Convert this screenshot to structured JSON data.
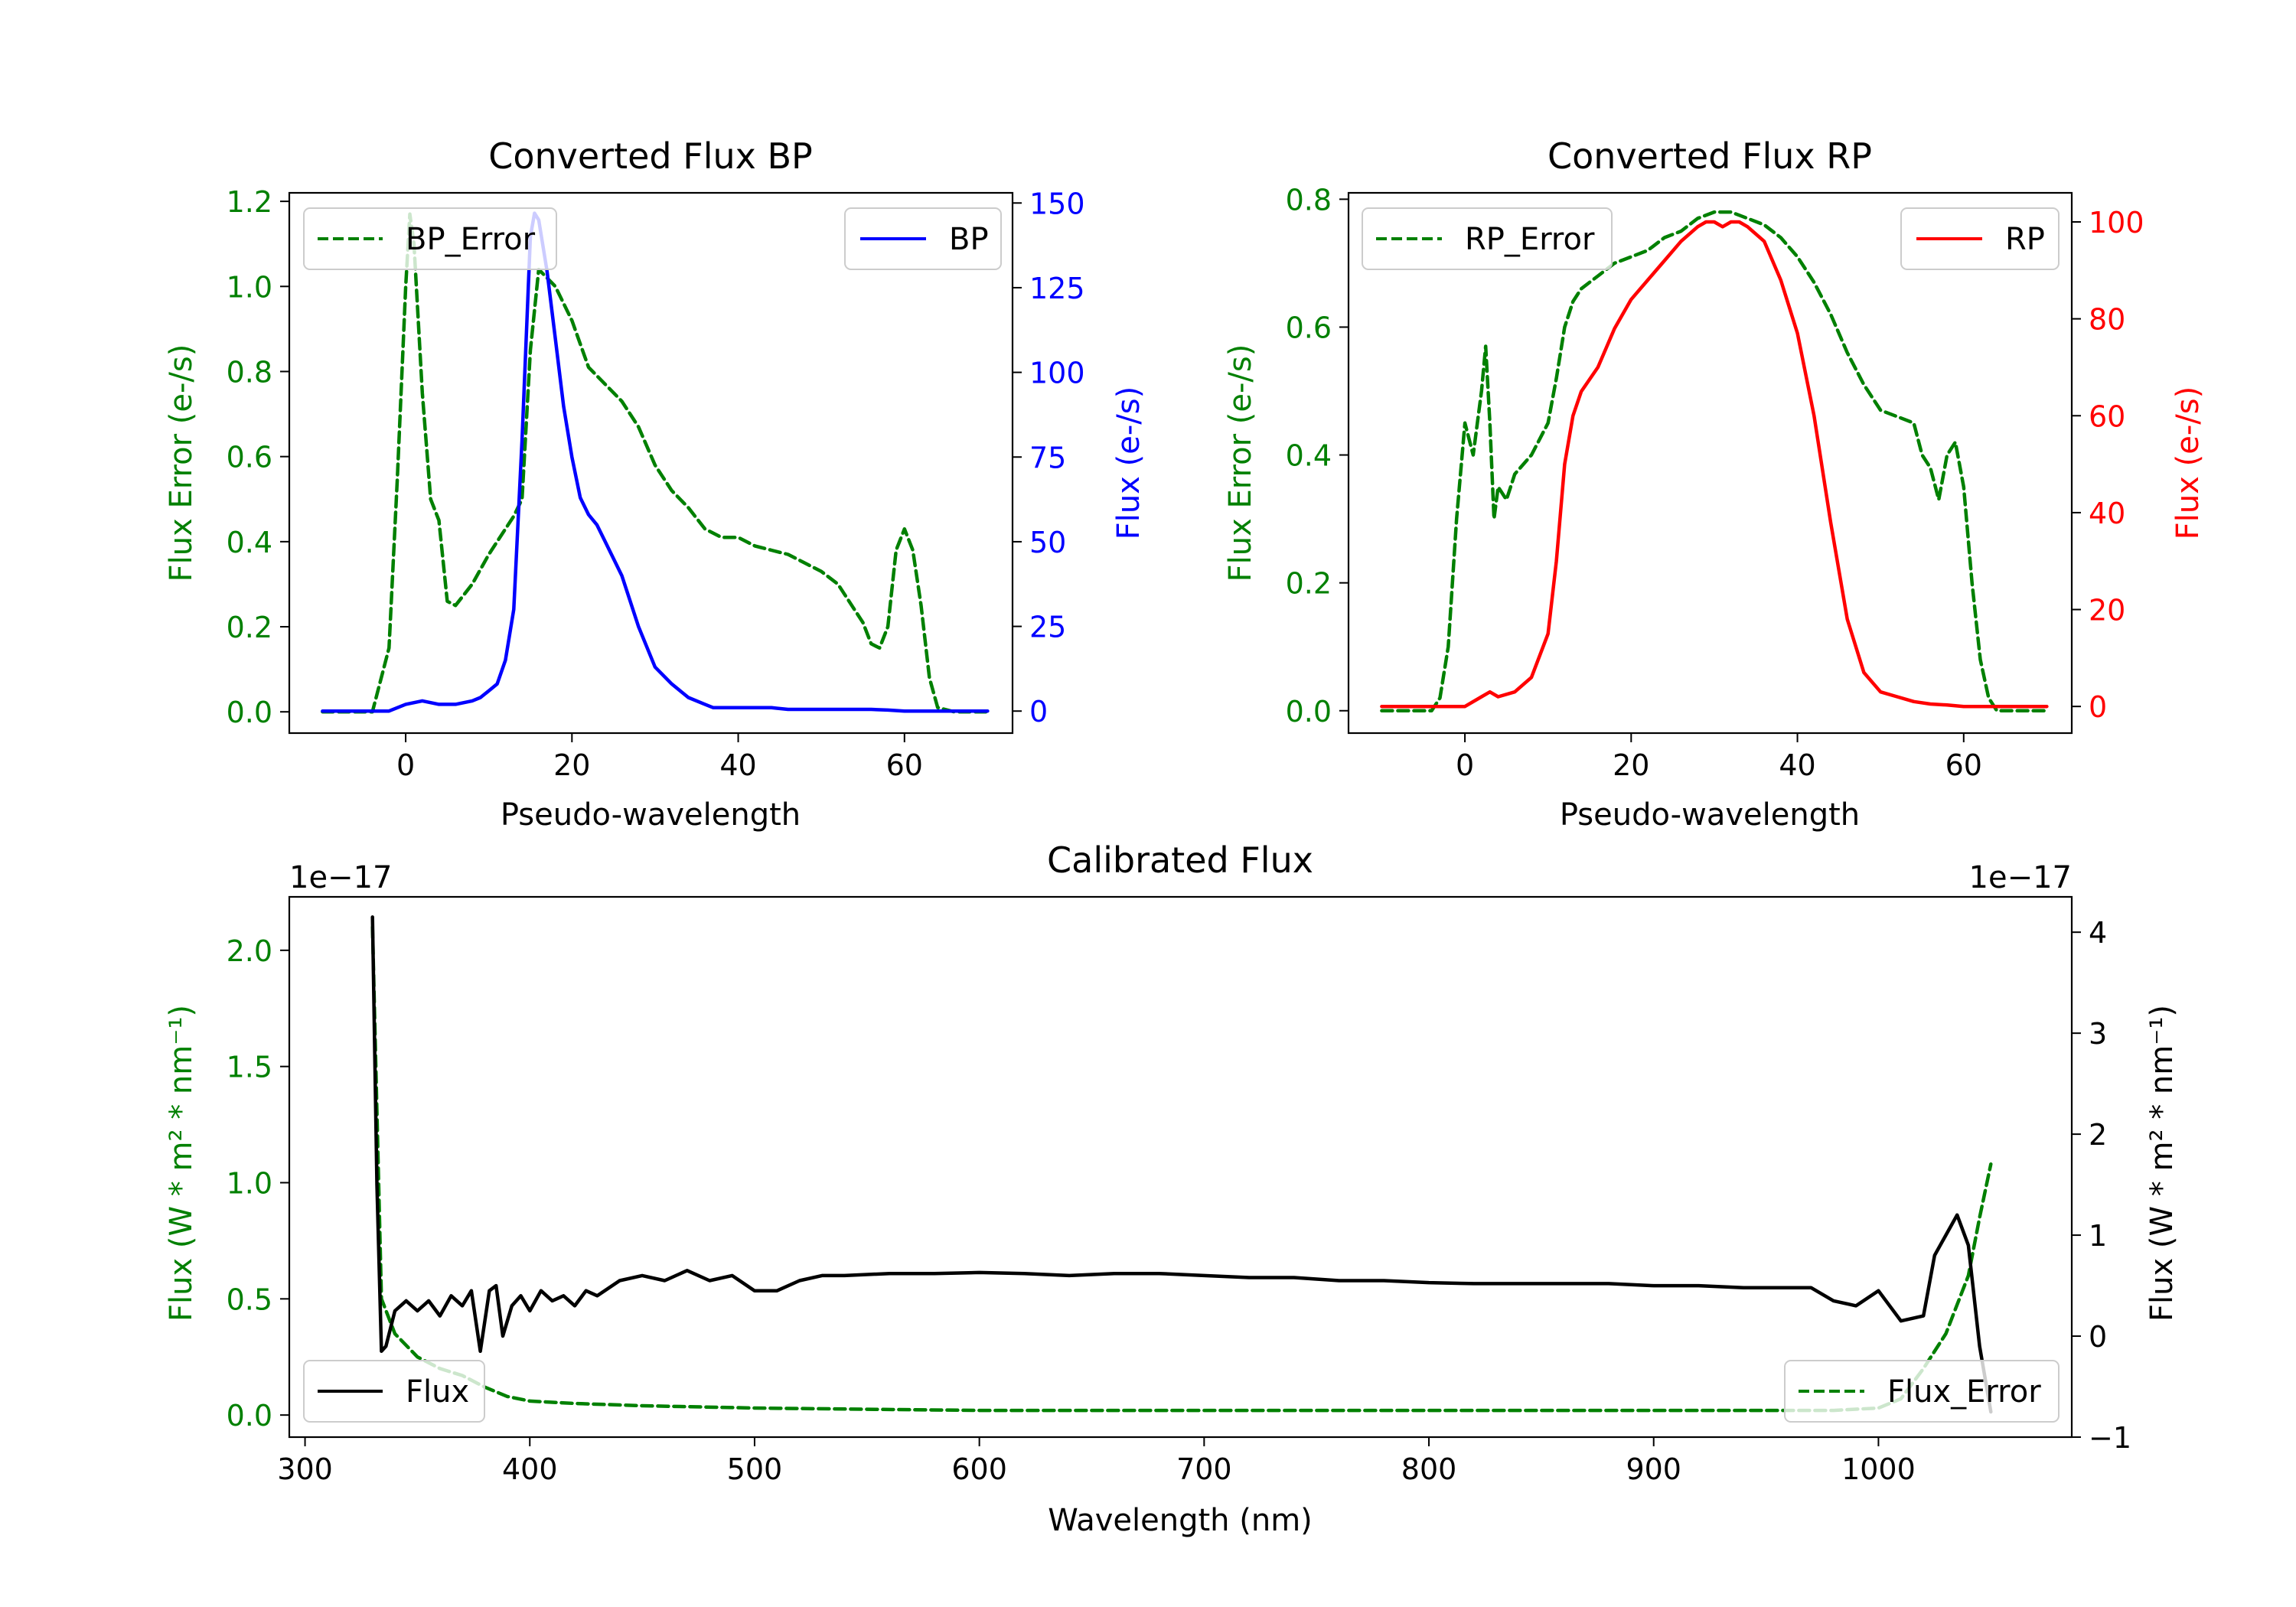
{
  "figure_title": "",
  "chart_data": [
    {
      "id": "bp",
      "type": "line",
      "title": "Converted Flux BP",
      "xlabel": "Pseudo-wavelength",
      "xlim": [
        -14,
        73
      ],
      "xticks": [
        0,
        20,
        40,
        60
      ],
      "y_left": {
        "label": "Flux Error (e-/s)",
        "lim": [
          -0.05,
          1.22
        ],
        "ticks": [
          0.0,
          0.2,
          0.4,
          0.6,
          0.8,
          1.0,
          1.2
        ],
        "color": "#008000"
      },
      "y_right": {
        "label": "Flux (e-/s)",
        "lim": [
          -6.5,
          153
        ],
        "ticks": [
          0,
          25,
          50,
          75,
          100,
          125,
          150
        ],
        "color": "#0000ff"
      },
      "legend_left": {
        "label": "BP_Error",
        "position": "upper left"
      },
      "legend_right": {
        "label": "BP",
        "position": "upper right"
      },
      "series": [
        {
          "name": "BP_Error",
          "axis": "left",
          "color": "#008000",
          "style": "dashed",
          "x": [
            -10,
            -4,
            -2,
            -1,
            0,
            0.5,
            1,
            2,
            3,
            4,
            5,
            6,
            8,
            10,
            12,
            13,
            14,
            15,
            16,
            18,
            20,
            22,
            24,
            26,
            28,
            30,
            32,
            34,
            36,
            38,
            40,
            42,
            44,
            46,
            48,
            50,
            52,
            54,
            55,
            56,
            57,
            58,
            59,
            60,
            61,
            62,
            63,
            64,
            66,
            70
          ],
          "values": [
            0.0,
            0.0,
            0.15,
            0.55,
            1.0,
            1.17,
            1.1,
            0.75,
            0.5,
            0.45,
            0.26,
            0.25,
            0.3,
            0.37,
            0.43,
            0.46,
            0.5,
            0.85,
            1.04,
            1.0,
            0.92,
            0.81,
            0.77,
            0.73,
            0.67,
            0.58,
            0.52,
            0.48,
            0.43,
            0.41,
            0.41,
            0.39,
            0.38,
            0.37,
            0.35,
            0.33,
            0.3,
            0.24,
            0.21,
            0.16,
            0.15,
            0.2,
            0.38,
            0.43,
            0.38,
            0.25,
            0.08,
            0.01,
            0.0,
            0.0
          ]
        },
        {
          "name": "BP",
          "axis": "right",
          "color": "#0000ff",
          "style": "solid",
          "x": [
            -10,
            -4,
            -2,
            0,
            2,
            4,
            6,
            8,
            9,
            10,
            11,
            12,
            13,
            14,
            15,
            15.5,
            16,
            17,
            18,
            19,
            20,
            21,
            22,
            23,
            24,
            26,
            28,
            30,
            32,
            34,
            36,
            37,
            38,
            40,
            42,
            44,
            46,
            48,
            50,
            52,
            54,
            56,
            58,
            60,
            65,
            70
          ],
          "values": [
            0,
            0,
            0,
            2,
            3,
            2,
            2,
            3,
            4,
            6,
            8,
            15,
            30,
            80,
            140,
            147,
            145,
            130,
            110,
            90,
            75,
            63,
            58,
            55,
            50,
            40,
            25,
            13,
            8,
            4,
            2,
            1,
            1,
            1,
            1,
            1,
            0.5,
            0.5,
            0.5,
            0.5,
            0.5,
            0.5,
            0.3,
            0,
            0,
            0
          ]
        }
      ]
    },
    {
      "id": "rp",
      "type": "line",
      "title": "Converted Flux RP",
      "xlabel": "Pseudo-wavelength",
      "xlim": [
        -14,
        73
      ],
      "xticks": [
        0,
        20,
        40,
        60
      ],
      "y_left": {
        "label": "Flux Error (e-/s)",
        "lim": [
          -0.035,
          0.81
        ],
        "ticks": [
          0.0,
          0.2,
          0.4,
          0.6,
          0.8
        ],
        "color": "#008000"
      },
      "y_right": {
        "label": "Flux (e-/s)",
        "lim": [
          -5.5,
          106
        ],
        "ticks": [
          0,
          20,
          40,
          60,
          80,
          100
        ],
        "color": "#ff0000"
      },
      "legend_left": {
        "label": "RP_Error",
        "position": "upper left"
      },
      "legend_right": {
        "label": "RP",
        "position": "upper right"
      },
      "series": [
        {
          "name": "RP_Error",
          "axis": "left",
          "color": "#008000",
          "style": "dashed",
          "x": [
            -10,
            -4,
            -3,
            -2,
            -1,
            0,
            1,
            2,
            2.5,
            3,
            3.5,
            4,
            5,
            6,
            8,
            10,
            11,
            12,
            13,
            14,
            16,
            18,
            20,
            22,
            24,
            26,
            28,
            30,
            32,
            34,
            36,
            38,
            40,
            42,
            44,
            46,
            48,
            50,
            52,
            54,
            55,
            56,
            57,
            58,
            59,
            60,
            61,
            62,
            63,
            64,
            66,
            70
          ],
          "values": [
            0.0,
            0.0,
            0.02,
            0.1,
            0.3,
            0.45,
            0.4,
            0.5,
            0.57,
            0.45,
            0.3,
            0.35,
            0.33,
            0.37,
            0.4,
            0.45,
            0.52,
            0.6,
            0.64,
            0.66,
            0.68,
            0.7,
            0.71,
            0.72,
            0.74,
            0.75,
            0.77,
            0.78,
            0.78,
            0.77,
            0.76,
            0.74,
            0.71,
            0.67,
            0.62,
            0.56,
            0.51,
            0.47,
            0.46,
            0.45,
            0.4,
            0.38,
            0.33,
            0.4,
            0.42,
            0.35,
            0.2,
            0.08,
            0.02,
            0.0,
            0.0,
            0.0
          ]
        },
        {
          "name": "RP",
          "axis": "right",
          "color": "#ff0000",
          "style": "solid",
          "x": [
            -10,
            -4,
            0,
            2,
            3,
            4,
            6,
            8,
            10,
            11,
            12,
            13,
            14,
            16,
            18,
            20,
            22,
            24,
            26,
            28,
            29,
            30,
            31,
            32,
            33,
            34,
            36,
            38,
            40,
            42,
            44,
            46,
            48,
            50,
            52,
            54,
            56,
            58,
            60,
            65,
            70
          ],
          "values": [
            0,
            0,
            0,
            2,
            3,
            2,
            3,
            6,
            15,
            30,
            50,
            60,
            65,
            70,
            78,
            84,
            88,
            92,
            96,
            99,
            100,
            100,
            99,
            100,
            100,
            99,
            96,
            88,
            77,
            60,
            38,
            18,
            7,
            3,
            2,
            1,
            0.5,
            0.3,
            0,
            0,
            0
          ]
        }
      ]
    },
    {
      "id": "cal",
      "type": "line",
      "title": "Calibrated Flux",
      "xlabel": "Wavelength (nm)",
      "xlim": [
        293,
        1086
      ],
      "xticks": [
        300,
        400,
        500,
        600,
        700,
        800,
        900,
        1000
      ],
      "y_left": {
        "label": "Flux (W * m² * nm⁻¹)",
        "lim": [
          -0.095,
          2.23
        ],
        "ticks": [
          0.0,
          0.5,
          1.0,
          1.5,
          2.0
        ],
        "tick_labels": [
          "0.0",
          "0.5",
          "1.0",
          "1.5",
          "2.0"
        ],
        "offset_text": "1e−17",
        "color": "#008000"
      },
      "y_right": {
        "label": "Flux (W * m² * nm⁻¹)",
        "lim": [
          -1.0,
          4.35
        ],
        "ticks": [
          -1,
          0,
          1,
          2,
          3,
          4
        ],
        "tick_labels": [
          "−1",
          "0",
          "1",
          "2",
          "3",
          "4"
        ],
        "offset_text": "1e−17",
        "color": "#000000"
      },
      "legend_left": {
        "label": "Flux",
        "position": "lower left"
      },
      "legend_right": {
        "label": "Flux_Error",
        "position": "lower right"
      },
      "series": [
        {
          "name": "Flux_Error",
          "axis": "left",
          "color": "#008000",
          "style": "dashed",
          "x": [
            330,
            334,
            340,
            350,
            360,
            370,
            380,
            390,
            400,
            420,
            450,
            500,
            550,
            600,
            650,
            700,
            750,
            800,
            850,
            900,
            950,
            980,
            1000,
            1010,
            1020,
            1030,
            1040,
            1045,
            1050
          ],
          "values": [
            2.1,
            0.5,
            0.35,
            0.25,
            0.2,
            0.17,
            0.12,
            0.08,
            0.06,
            0.05,
            0.04,
            0.03,
            0.025,
            0.02,
            0.02,
            0.02,
            0.02,
            0.02,
            0.02,
            0.02,
            0.02,
            0.02,
            0.03,
            0.07,
            0.2,
            0.35,
            0.6,
            0.85,
            1.08
          ]
        },
        {
          "name": "Flux",
          "axis": "right",
          "color": "#000000",
          "style": "solid",
          "x": [
            330,
            332,
            334,
            336,
            340,
            345,
            350,
            355,
            360,
            365,
            370,
            374,
            378,
            382,
            385,
            388,
            392,
            396,
            400,
            405,
            410,
            415,
            420,
            425,
            430,
            440,
            450,
            460,
            470,
            480,
            490,
            500,
            510,
            520,
            530,
            540,
            560,
            580,
            600,
            620,
            640,
            660,
            680,
            700,
            720,
            740,
            760,
            780,
            800,
            820,
            840,
            860,
            880,
            900,
            920,
            940,
            960,
            970,
            980,
            990,
            1000,
            1010,
            1020,
            1025,
            1030,
            1035,
            1040,
            1045,
            1050
          ],
          "values": [
            4.15,
            1.5,
            -0.15,
            -0.1,
            0.25,
            0.35,
            0.25,
            0.35,
            0.2,
            0.4,
            0.3,
            0.45,
            -0.15,
            0.45,
            0.5,
            0.0,
            0.3,
            0.4,
            0.25,
            0.45,
            0.35,
            0.4,
            0.3,
            0.45,
            0.4,
            0.55,
            0.6,
            0.55,
            0.65,
            0.55,
            0.6,
            0.45,
            0.45,
            0.55,
            0.6,
            0.6,
            0.62,
            0.62,
            0.63,
            0.62,
            0.6,
            0.62,
            0.62,
            0.6,
            0.58,
            0.58,
            0.55,
            0.55,
            0.53,
            0.52,
            0.52,
            0.52,
            0.52,
            0.5,
            0.5,
            0.48,
            0.48,
            0.48,
            0.35,
            0.3,
            0.45,
            0.15,
            0.2,
            0.8,
            1.0,
            1.2,
            0.9,
            -0.1,
            -0.75
          ]
        }
      ]
    }
  ]
}
